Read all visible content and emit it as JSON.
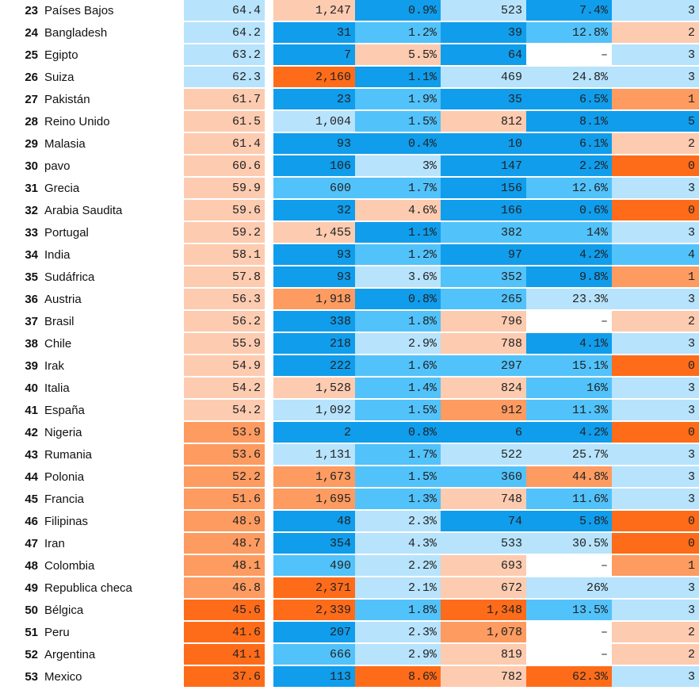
{
  "palette": {
    "dark_orange": "#fe6c1a",
    "mid_orange": "#fd9b61",
    "light_orange": "#fdcbb0",
    "light_blue": "#b7e3fc",
    "mid_blue": "#52c2fa",
    "dark_blue": "#109dec",
    "white": "#ffffff"
  },
  "rows": [
    {
      "rank": "23",
      "country": "Países Bajos",
      "score": "64.4",
      "v1": "1,247",
      "v2": "0.9%",
      "v3": "523",
      "v4": "7.4%",
      "v5": "3",
      "c": [
        "light_blue",
        "light_orange",
        "dark_blue",
        "light_blue",
        "dark_blue",
        "light_blue"
      ]
    },
    {
      "rank": "24",
      "country": "Bangladesh",
      "score": "64.2",
      "v1": "31",
      "v2": "1.2%",
      "v3": "39",
      "v4": "12.8%",
      "v5": "2",
      "c": [
        "light_blue",
        "dark_blue",
        "mid_blue",
        "dark_blue",
        "mid_blue",
        "light_orange"
      ]
    },
    {
      "rank": "25",
      "country": "Egipto",
      "score": "63.2",
      "v1": "7",
      "v2": "5.5%",
      "v3": "64",
      "v4": "–",
      "v5": "3",
      "c": [
        "light_blue",
        "dark_blue",
        "light_orange",
        "dark_blue",
        "white",
        "light_blue"
      ]
    },
    {
      "rank": "26",
      "country": "Suiza",
      "score": "62.3",
      "v1": "2,160",
      "v2": "1.1%",
      "v3": "469",
      "v4": "24.8%",
      "v5": "3",
      "c": [
        "light_blue",
        "dark_orange",
        "dark_blue",
        "light_blue",
        "light_blue",
        "light_blue"
      ]
    },
    {
      "rank": "27",
      "country": "Pakistán",
      "score": "61.7",
      "v1": "23",
      "v2": "1.9%",
      "v3": "35",
      "v4": "6.5%",
      "v5": "1",
      "c": [
        "light_orange",
        "dark_blue",
        "mid_blue",
        "dark_blue",
        "dark_blue",
        "mid_orange"
      ]
    },
    {
      "rank": "28",
      "country": "Reino Unido",
      "score": "61.5",
      "v1": "1,004",
      "v2": "1.5%",
      "v3": "812",
      "v4": "8.1%",
      "v5": "5",
      "c": [
        "light_orange",
        "light_blue",
        "mid_blue",
        "light_orange",
        "dark_blue",
        "dark_blue"
      ]
    },
    {
      "rank": "29",
      "country": "Malasia",
      "score": "61.4",
      "v1": "93",
      "v2": "0.4%",
      "v3": "10",
      "v4": "6.1%",
      "v5": "2",
      "c": [
        "light_orange",
        "dark_blue",
        "dark_blue",
        "dark_blue",
        "dark_blue",
        "light_orange"
      ]
    },
    {
      "rank": "30",
      "country": "pavo",
      "score": "60.6",
      "v1": "106",
      "v2": "3%",
      "v3": "147",
      "v4": "2.2%",
      "v5": "0",
      "c": [
        "light_orange",
        "dark_blue",
        "light_blue",
        "dark_blue",
        "dark_blue",
        "dark_orange"
      ]
    },
    {
      "rank": "31",
      "country": "Grecia",
      "score": "59.9",
      "v1": "600",
      "v2": "1.7%",
      "v3": "156",
      "v4": "12.6%",
      "v5": "3",
      "c": [
        "light_orange",
        "mid_blue",
        "mid_blue",
        "dark_blue",
        "mid_blue",
        "light_blue"
      ]
    },
    {
      "rank": "32",
      "country": "Arabia Saudita",
      "score": "59.6",
      "v1": "32",
      "v2": "4.6%",
      "v3": "166",
      "v4": "0.6%",
      "v5": "0",
      "c": [
        "light_orange",
        "dark_blue",
        "light_orange",
        "dark_blue",
        "dark_blue",
        "dark_orange"
      ]
    },
    {
      "rank": "33",
      "country": "Portugal",
      "score": "59.2",
      "v1": "1,455",
      "v2": "1.1%",
      "v3": "382",
      "v4": "14%",
      "v5": "3",
      "c": [
        "light_orange",
        "light_orange",
        "dark_blue",
        "mid_blue",
        "mid_blue",
        "light_blue"
      ]
    },
    {
      "rank": "34",
      "country": "India",
      "score": "58.1",
      "v1": "93",
      "v2": "1.2%",
      "v3": "97",
      "v4": "4.2%",
      "v5": "4",
      "c": [
        "light_orange",
        "dark_blue",
        "mid_blue",
        "dark_blue",
        "dark_blue",
        "mid_blue"
      ]
    },
    {
      "rank": "35",
      "country": "Sudáfrica",
      "score": "57.8",
      "v1": "93",
      "v2": "3.6%",
      "v3": "352",
      "v4": "9.8%",
      "v5": "1",
      "c": [
        "light_orange",
        "dark_blue",
        "light_blue",
        "mid_blue",
        "dark_blue",
        "mid_orange"
      ]
    },
    {
      "rank": "36",
      "country": "Austria",
      "score": "56.3",
      "v1": "1,918",
      "v2": "0.8%",
      "v3": "265",
      "v4": "23.3%",
      "v5": "3",
      "c": [
        "light_orange",
        "mid_orange",
        "dark_blue",
        "mid_blue",
        "light_blue",
        "light_blue"
      ]
    },
    {
      "rank": "37",
      "country": "Brasil",
      "score": "56.2",
      "v1": "338",
      "v2": "1.8%",
      "v3": "796",
      "v4": "–",
      "v5": "2",
      "c": [
        "light_orange",
        "dark_blue",
        "mid_blue",
        "light_orange",
        "white",
        "light_orange"
      ]
    },
    {
      "rank": "38",
      "country": "Chile",
      "score": "55.9",
      "v1": "218",
      "v2": "2.9%",
      "v3": "788",
      "v4": "4.1%",
      "v5": "3",
      "c": [
        "light_orange",
        "dark_blue",
        "light_blue",
        "light_orange",
        "dark_blue",
        "light_blue"
      ]
    },
    {
      "rank": "39",
      "country": "Irak",
      "score": "54.9",
      "v1": "222",
      "v2": "1.6%",
      "v3": "297",
      "v4": "15.1%",
      "v5": "0",
      "c": [
        "light_orange",
        "dark_blue",
        "mid_blue",
        "mid_blue",
        "mid_blue",
        "dark_orange"
      ]
    },
    {
      "rank": "40",
      "country": "Italia",
      "score": "54.2",
      "v1": "1,528",
      "v2": "1.4%",
      "v3": "824",
      "v4": "16%",
      "v5": "3",
      "c": [
        "light_orange",
        "light_orange",
        "mid_blue",
        "light_orange",
        "mid_blue",
        "light_blue"
      ]
    },
    {
      "rank": "41",
      "country": "España",
      "score": "54.2",
      "v1": "1,092",
      "v2": "1.5%",
      "v3": "912",
      "v4": "11.3%",
      "v5": "3",
      "c": [
        "light_orange",
        "light_blue",
        "mid_blue",
        "mid_orange",
        "mid_blue",
        "light_blue"
      ]
    },
    {
      "rank": "42",
      "country": "Nigeria",
      "score": "53.9",
      "v1": "2",
      "v2": "0.8%",
      "v3": "6",
      "v4": "4.2%",
      "v5": "0",
      "c": [
        "mid_orange",
        "dark_blue",
        "dark_blue",
        "dark_blue",
        "dark_blue",
        "dark_orange"
      ]
    },
    {
      "rank": "43",
      "country": "Rumania",
      "score": "53.6",
      "v1": "1,131",
      "v2": "1.7%",
      "v3": "522",
      "v4": "25.7%",
      "v5": "3",
      "c": [
        "mid_orange",
        "light_blue",
        "mid_blue",
        "light_blue",
        "light_blue",
        "light_blue"
      ]
    },
    {
      "rank": "44",
      "country": "Polonia",
      "score": "52.2",
      "v1": "1,673",
      "v2": "1.5%",
      "v3": "360",
      "v4": "44.8%",
      "v5": "3",
      "c": [
        "mid_orange",
        "mid_orange",
        "mid_blue",
        "mid_blue",
        "mid_orange",
        "light_blue"
      ]
    },
    {
      "rank": "45",
      "country": "Francia",
      "score": "51.6",
      "v1": "1,695",
      "v2": "1.3%",
      "v3": "748",
      "v4": "11.6%",
      "v5": "3",
      "c": [
        "mid_orange",
        "mid_orange",
        "mid_blue",
        "light_orange",
        "mid_blue",
        "light_blue"
      ]
    },
    {
      "rank": "46",
      "country": "Filipinas",
      "score": "48.9",
      "v1": "48",
      "v2": "2.3%",
      "v3": "74",
      "v4": "5.8%",
      "v5": "0",
      "c": [
        "mid_orange",
        "dark_blue",
        "light_blue",
        "dark_blue",
        "dark_blue",
        "dark_orange"
      ]
    },
    {
      "rank": "47",
      "country": "Iran",
      "score": "48.7",
      "v1": "354",
      "v2": "4.3%",
      "v3": "533",
      "v4": "30.5%",
      "v5": "0",
      "c": [
        "mid_orange",
        "dark_blue",
        "light_blue",
        "light_blue",
        "light_blue",
        "dark_orange"
      ]
    },
    {
      "rank": "48",
      "country": "Colombia",
      "score": "48.1",
      "v1": "490",
      "v2": "2.2%",
      "v3": "693",
      "v4": "–",
      "v5": "1",
      "c": [
        "mid_orange",
        "mid_blue",
        "light_blue",
        "light_orange",
        "white",
        "mid_orange"
      ]
    },
    {
      "rank": "49",
      "country": "Republica checa",
      "score": "46.8",
      "v1": "2,371",
      "v2": "2.1%",
      "v3": "672",
      "v4": "26%",
      "v5": "3",
      "c": [
        "mid_orange",
        "dark_orange",
        "light_blue",
        "light_orange",
        "light_blue",
        "light_blue"
      ]
    },
    {
      "rank": "50",
      "country": "Bélgica",
      "score": "45.6",
      "v1": "2,339",
      "v2": "1.8%",
      "v3": "1,348",
      "v4": "13.5%",
      "v5": "3",
      "c": [
        "dark_orange",
        "dark_orange",
        "mid_blue",
        "dark_orange",
        "mid_blue",
        "light_blue"
      ]
    },
    {
      "rank": "51",
      "country": "Peru",
      "score": "41.6",
      "v1": "207",
      "v2": "2.3%",
      "v3": "1,078",
      "v4": "–",
      "v5": "2",
      "c": [
        "dark_orange",
        "dark_blue",
        "light_blue",
        "mid_orange",
        "white",
        "light_orange"
      ]
    },
    {
      "rank": "52",
      "country": "Argentina",
      "score": "41.1",
      "v1": "666",
      "v2": "2.9%",
      "v3": "819",
      "v4": "–",
      "v5": "2",
      "c": [
        "dark_orange",
        "mid_blue",
        "light_blue",
        "light_orange",
        "white",
        "light_orange"
      ]
    },
    {
      "rank": "53",
      "country": "Mexico",
      "score": "37.6",
      "v1": "113",
      "v2": "8.6%",
      "v3": "782",
      "v4": "62.3%",
      "v5": "3",
      "c": [
        "dark_orange",
        "dark_blue",
        "dark_orange",
        "light_orange",
        "dark_orange",
        "light_blue"
      ]
    }
  ]
}
